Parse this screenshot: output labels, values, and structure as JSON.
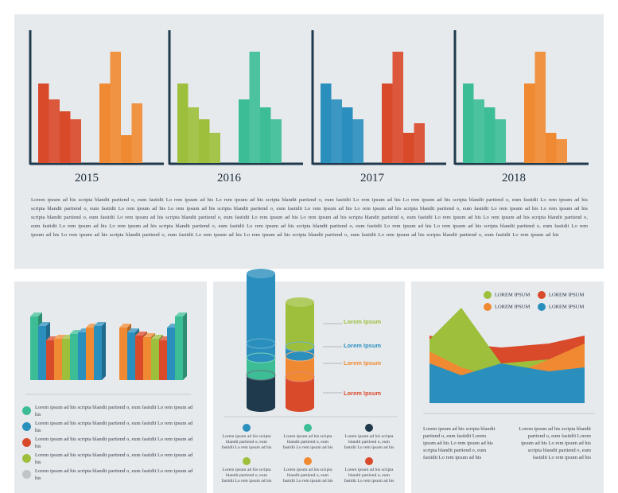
{
  "colors": {
    "red": "#d94a2b",
    "orange": "#ef8a32",
    "green": "#9dbf3c",
    "teal": "#3dbd96",
    "blue": "#2b8fbd",
    "navy": "#1f3a4d"
  },
  "chart_data": [
    {
      "type": "bar",
      "title": "2015",
      "series": [
        {
          "values": [
            100,
            80,
            65,
            55
          ],
          "color": "#d94a2b"
        },
        {
          "values": [
            100,
            140,
            35,
            75
          ],
          "color": "#ef8a32"
        }
      ]
    },
    {
      "type": "bar",
      "title": "2016",
      "series": [
        {
          "values": [
            100,
            70,
            55,
            38
          ],
          "color": "#9dbf3c"
        },
        {
          "values": [
            80,
            140,
            70,
            55
          ],
          "color": "#3dbd96"
        }
      ]
    },
    {
      "type": "bar",
      "title": "2017",
      "series": [
        {
          "values": [
            100,
            80,
            70,
            55
          ],
          "color": "#2b8fbd"
        },
        {
          "values": [
            100,
            140,
            38,
            50
          ],
          "color": "#d94a2b"
        }
      ]
    },
    {
      "type": "bar",
      "title": "2018",
      "series": [
        {
          "values": [
            100,
            80,
            70,
            55
          ],
          "color": "#3dbd96"
        },
        {
          "values": [
            100,
            140,
            38,
            30
          ],
          "color": "#ef8a32"
        }
      ]
    },
    {
      "type": "area",
      "legend": [
        "LOREM IPSUM",
        "LOREM IPSUM",
        "LOREM IPSUM",
        "LOREM IPSUM"
      ],
      "series": [
        {
          "color": "#2b8fbd",
          "values": [
            50,
            35,
            50,
            40,
            45
          ]
        },
        {
          "color": "#ef8a32",
          "values": [
            65,
            45,
            30,
            55,
            75
          ]
        },
        {
          "color": "#d94a2b",
          "values": [
            85,
            75,
            70,
            75,
            85
          ]
        },
        {
          "color": "#9dbf3c",
          "values": [
            80,
            120,
            50,
            55,
            60
          ]
        }
      ]
    }
  ],
  "top_text": "Lorem ipsum ad his scripta blandit partiend o, eum fastidii Lo rem ipsum ad his Lo rem ipsum ad his scripta blandit partiend o, eum fastidii Lo rem ipsum ad his Lo rem ipsum ad his scripta blandit partiend o, eum fastidii Lo rem ipsum ad his scripta blandit partiend o, eum fastidii Lo rem ipsum ad his Lo rem ipsum ad his scripta blandit partiend o, eum fastidii Lo rem ipsum ad his Lo rem ipsum ad his scripta blandit partiend o, eum fastidii Lo rem ipsum ad his Lo rem ipsum ad his scripta blandit partiend o, eum fastidii Lo rem ipsum ad his scripta blandit partiend o, eum fastidii Lo rem ipsum ad his Lo rem ipsum ad his scripta blandit partiend o, eum fastidii Lo rem ipsum ad his Lo rem ipsum ad his scripta blandit partiend o, eum fastidii Lo rem ipsum ad his Lo rem ipsum ad his scripta blandit partiend o, eum fastidii Lo rem ipsum ad his scripta blandit partiend o, eum fastidii Lo rem ipsum ad his Lo rem ipsum ad his scripta blandit partiend o, eum fastidii Lo rem ipsum ad his Lo rem ipsum ad his scripta blandit partiend o, eum fastidii Lo rem ipsum ad his Lo rem ipsum ad his scripta blandit partiend o, eum fastidii Lo rem ipsum ad his scripta blandit partiend o, eum fastidii Lo rem ipsum ad his",
  "left_items": [
    "Lorem ipsum ad his scripta blandit partiend o, eum fastidii Lo rem ipsum ad his",
    "Lorem ipsum ad his scripta blandit partiend o, eum fastidii Lo rem ipsum ad his",
    "Lorem ipsum ad his scripta blandit partiend o, eum fastidii Lo rem ipsum ad his",
    "Lorem ipsum ad his scripta blandit partiend o, eum fastidii Lo rem ipsum ad his",
    "Lorem ipsum ad his scripta blandit partiend o, eum fastidii Lo rem ipsum ad his"
  ],
  "cylinder_labels": [
    "Lorem Ipsum",
    "Lorem Ipsum",
    "Lorem Ipsum",
    "Lorem Ipsum"
  ],
  "mid_items": [
    "Lorem ipsum ad his scripta blandit partiend o, eum fastidii Lo rem ipsum ad his",
    "Lorem ipsum ad his scripta blandit partiend o, eum fastidii Lo rem ipsum ad his",
    "Lorem ipsum ad his scripta blandit partiend o, eum fastidii Lo rem ipsum ad his",
    "Lorem ipsum ad his scripta blandit partiend o, eum fastidii Lo rem ipsum ad his",
    "Lorem ipsum ad his scripta blandit partiend o, eum fastidii Lo rem ipsum ad his",
    "Lorem ipsum ad his scripta blandit partiend o, eum fastidii Lo rem ipsum ad his"
  ],
  "right_text": [
    "Lorem ipsum ad his scripta blandit partiend o, eum fastidii Lorem ipsum ad his Lo rem ipsum ad his scripta blandit partiend o, eum fastidii Lo rem ipsum ad his",
    "Lorem ipsum ad his scripta blandit partiend o, eum fastidii Lorem ipsum ad his Lo rem ipsum ad his scripta blandit partiend o, eum fastidii Lo rem ipsum ad his"
  ]
}
